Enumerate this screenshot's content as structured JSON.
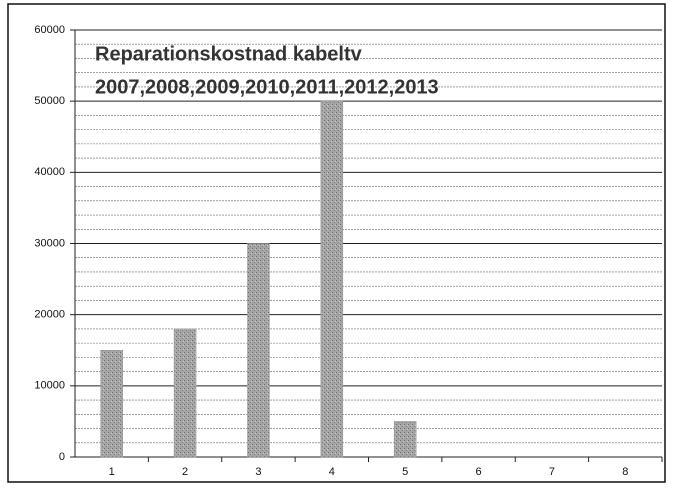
{
  "chart_data": {
    "type": "bar",
    "title": "Reparationskostnad kabeltv",
    "subtitle": "2007,2008,2009,2010,2011,2012,2013",
    "categories": [
      "1",
      "2",
      "3",
      "4",
      "5",
      "6",
      "7",
      "8"
    ],
    "values": [
      15000,
      18000,
      30000,
      50000,
      5000,
      0,
      0,
      0
    ],
    "color": "#9a9a9a",
    "ylim": [
      0,
      60000
    ],
    "yticks": [
      0,
      10000,
      20000,
      30000,
      40000,
      50000,
      60000
    ],
    "grid": true
  }
}
